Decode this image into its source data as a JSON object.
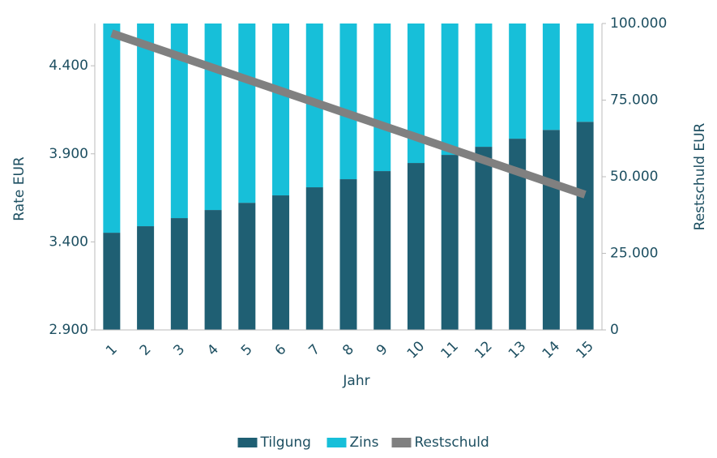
{
  "chart_data": {
    "type": "stacked-bar-line",
    "categories": [
      "1",
      "2",
      "3",
      "4",
      "5",
      "6",
      "7",
      "8",
      "9",
      "10",
      "11",
      "12",
      "13",
      "14",
      "15"
    ],
    "x_label": "Jahr",
    "y_label": "Rate EUR",
    "y2_label": "Restschuld EUR",
    "series": [
      {
        "name": "Tilgung",
        "color": "#1f5f73",
        "kind": "bar",
        "values": [
          3452,
          3489,
          3535,
          3581,
          3622,
          3664,
          3710,
          3756,
          3802,
          3848,
          3894,
          3940,
          3986,
          4036,
          4082
        ]
      },
      {
        "name": "Zins",
        "color": "#17bfd9",
        "kind": "bar",
        "values": [
          1188,
          1151,
          1105,
          1059,
          1018,
          976,
          930,
          884,
          838,
          792,
          746,
          700,
          654,
          604,
          558
        ]
      },
      {
        "name": "Restschuld",
        "color": "#808080",
        "kind": "line",
        "axis": "y2",
        "values": [
          96800,
          93040,
          89280,
          85520,
          81760,
          78000,
          74240,
          70480,
          66720,
          62960,
          59200,
          55440,
          51680,
          47920,
          44160
        ]
      }
    ],
    "ylim": [
      2900,
      4640
    ],
    "yticks": [
      {
        "value": 2900,
        "label": "2.900"
      },
      {
        "value": 3400,
        "label": "3.400"
      },
      {
        "value": 3900,
        "label": "3.900"
      },
      {
        "value": 4400,
        "label": "4.400"
      }
    ],
    "y2lim": [
      0,
      100000
    ],
    "y2ticks": [
      0,
      {
        "value": 25000,
        "label": "25.000"
      },
      {
        "value": 50000,
        "label": "50.000"
      },
      {
        "value": 75000,
        "label": "75.000"
      },
      {
        "value": 100000,
        "label": "100.000"
      }
    ],
    "legend": "bottom"
  }
}
